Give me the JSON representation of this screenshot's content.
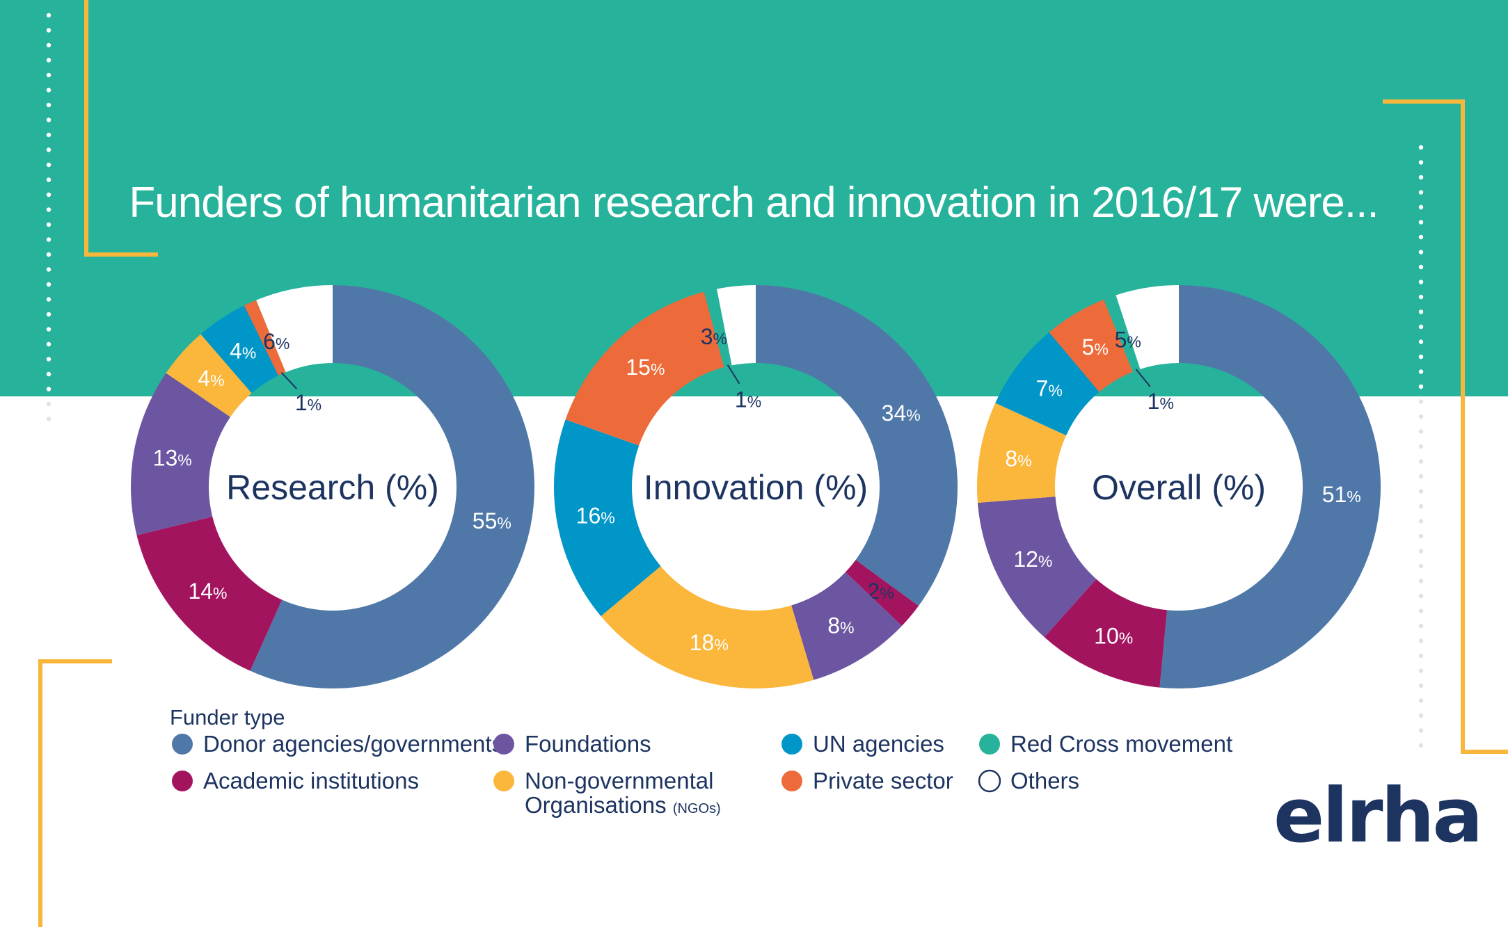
{
  "title": "Funders of humanitarian research and innovation in 2016/17 were...",
  "colors": {
    "band": "#27b39b",
    "accent_line": "#f8b73c",
    "dots": "#ffffff",
    "dots_gray": "#dfe3e6",
    "text_dark": "#1d3461"
  },
  "categories": [
    {
      "key": "donor",
      "label": "Donor agencies/governments",
      "color": "#4f78a8"
    },
    {
      "key": "academic",
      "label": "Academic institutions",
      "color": "#a3145f"
    },
    {
      "key": "foundations",
      "label": "Foundations",
      "color": "#6c56a2"
    },
    {
      "key": "ngo",
      "label": "Non-governmental",
      "label_line2": "Organisations",
      "label_suffix": "(NGOs)",
      "color": "#fbb63c"
    },
    {
      "key": "un",
      "label": "UN agencies",
      "color": "#0096c7"
    },
    {
      "key": "private",
      "label": "Private sector",
      "color": "#ed6b3a"
    },
    {
      "key": "redcross",
      "label": "Red Cross movement",
      "color": "#27b39b"
    },
    {
      "key": "others",
      "label": "Others",
      "color": "#ffffff"
    }
  ],
  "legend": {
    "title": "Funder type"
  },
  "logo": {
    "text": "elrha"
  },
  "chart_data": [
    {
      "type": "pie",
      "title": "Research (%)",
      "slices": [
        {
          "key": "donor",
          "value": 55,
          "label": "55"
        },
        {
          "key": "academic",
          "value": 14,
          "label": "14"
        },
        {
          "key": "foundations",
          "value": 13,
          "label": "13"
        },
        {
          "key": "ngo",
          "value": 4,
          "label": "4"
        },
        {
          "key": "un",
          "value": 4,
          "label": "4"
        },
        {
          "key": "private",
          "value": 1,
          "label": "1"
        },
        {
          "key": "others",
          "value": 6,
          "label": "6"
        }
      ],
      "unit": "%"
    },
    {
      "type": "pie",
      "title": "Innovation (%)",
      "slices": [
        {
          "key": "donor",
          "value": 34,
          "label": "34"
        },
        {
          "key": "academic",
          "value": 2,
          "label": "2"
        },
        {
          "key": "foundations",
          "value": 8,
          "label": "8"
        },
        {
          "key": "ngo",
          "value": 18,
          "label": "18"
        },
        {
          "key": "un",
          "value": 16,
          "label": "16"
        },
        {
          "key": "private",
          "value": 15,
          "label": "15"
        },
        {
          "key": "redcross",
          "value": 1,
          "label": "1"
        },
        {
          "key": "others",
          "value": 3,
          "label": "3"
        }
      ],
      "unit": "%"
    },
    {
      "type": "pie",
      "title": "Overall (%)",
      "slices": [
        {
          "key": "donor",
          "value": 51,
          "label": "51"
        },
        {
          "key": "academic",
          "value": 10,
          "label": "10"
        },
        {
          "key": "foundations",
          "value": 12,
          "label": "12"
        },
        {
          "key": "ngo",
          "value": 8,
          "label": "8"
        },
        {
          "key": "un",
          "value": 7,
          "label": "7"
        },
        {
          "key": "private",
          "value": 5,
          "label": "5"
        },
        {
          "key": "redcross",
          "value": 1,
          "label": "1"
        },
        {
          "key": "others",
          "value": 5,
          "label": "5"
        }
      ],
      "unit": "%"
    }
  ]
}
